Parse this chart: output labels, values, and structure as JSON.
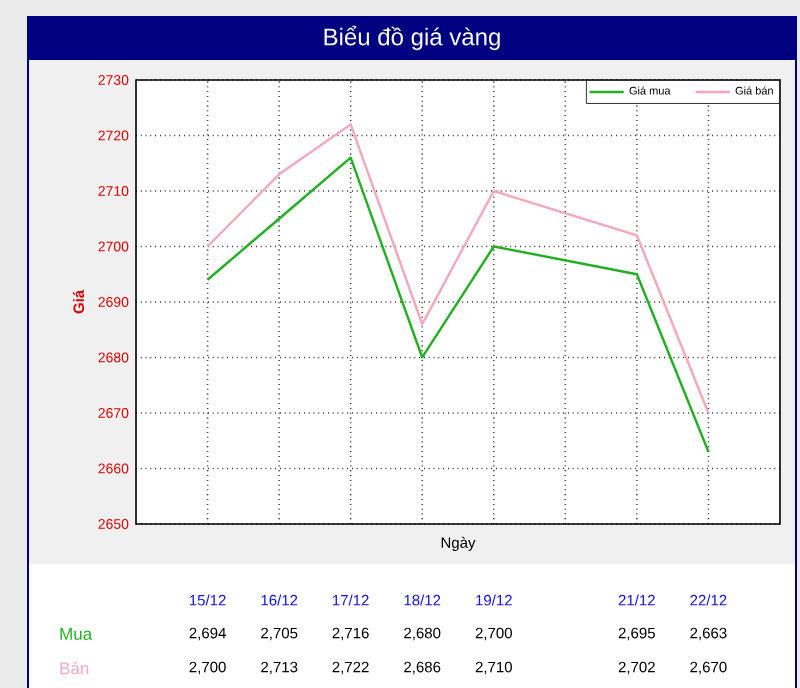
{
  "chart_data": {
    "type": "line",
    "title": "Biểu đồ giá vàng",
    "xlabel": "Ngày",
    "ylabel": "Giá",
    "categories": [
      "15/12",
      "16/12",
      "17/12",
      "18/12",
      "19/12",
      null,
      "21/12",
      "22/12"
    ],
    "series": [
      {
        "name": "Giá mua",
        "color": "#22b022",
        "values": [
          2694,
          2705,
          2716,
          2680,
          2700,
          null,
          2695,
          2663
        ],
        "value_labels": [
          "2,694",
          "2,705",
          "2,716",
          "2,680",
          "2,700",
          null,
          "2,695",
          "2,663"
        ]
      },
      {
        "name": "Giá bán",
        "color": "#f4a8b8",
        "values": [
          2700,
          2713,
          2722,
          2686,
          2710,
          null,
          2702,
          2670
        ],
        "value_labels": [
          "2,700",
          "2,713",
          "2,722",
          "2,686",
          "2,710",
          null,
          "2,702",
          "2,670"
        ]
      }
    ],
    "annotations": [
      "Mua",
      "Bán"
    ],
    "ylim": [
      2650,
      2730
    ],
    "yticks": [
      2650,
      2660,
      2670,
      2680,
      2690,
      2700,
      2710,
      2720,
      2730
    ],
    "grid": true,
    "legend": "top right",
    "marker": "none",
    "line_style": "solid"
  }
}
